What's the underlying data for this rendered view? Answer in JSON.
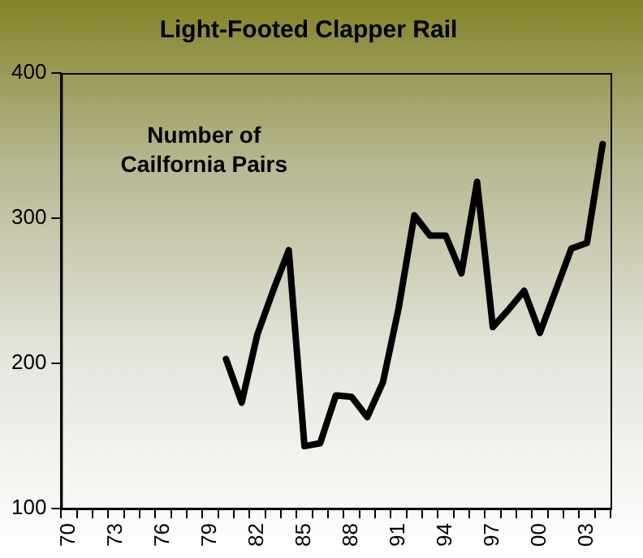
{
  "chart_data": {
    "type": "line",
    "title": "Light-Footed Clapper Rail",
    "categories": [
      "70",
      null,
      null,
      "73",
      null,
      null,
      "76",
      null,
      null,
      "79",
      null,
      null,
      "82",
      null,
      null,
      "85",
      null,
      null,
      "88",
      null,
      null,
      "91",
      null,
      null,
      "94",
      null,
      null,
      "97",
      null,
      null,
      "00",
      null,
      null,
      "03",
      null
    ],
    "series": [
      {
        "color": "#000000",
        "values": [
          null,
          null,
          null,
          null,
          null,
          null,
          null,
          null,
          null,
          null,
          203,
          173,
          220,
          250,
          278,
          143,
          145,
          178,
          177,
          163,
          187,
          238,
          302,
          288,
          288,
          262,
          325,
          225,
          237,
          250,
          221,
          250,
          279,
          283,
          351
        ]
      }
    ],
    "ylim": [
      100,
      400
    ],
    "yticks": [
      100,
      200,
      300,
      400
    ],
    "grid": false,
    "legend": false,
    "marker": "none",
    "line_style": "solid",
    "annotations": [
      "Number of\nCailfornia Pairs"
    ]
  }
}
